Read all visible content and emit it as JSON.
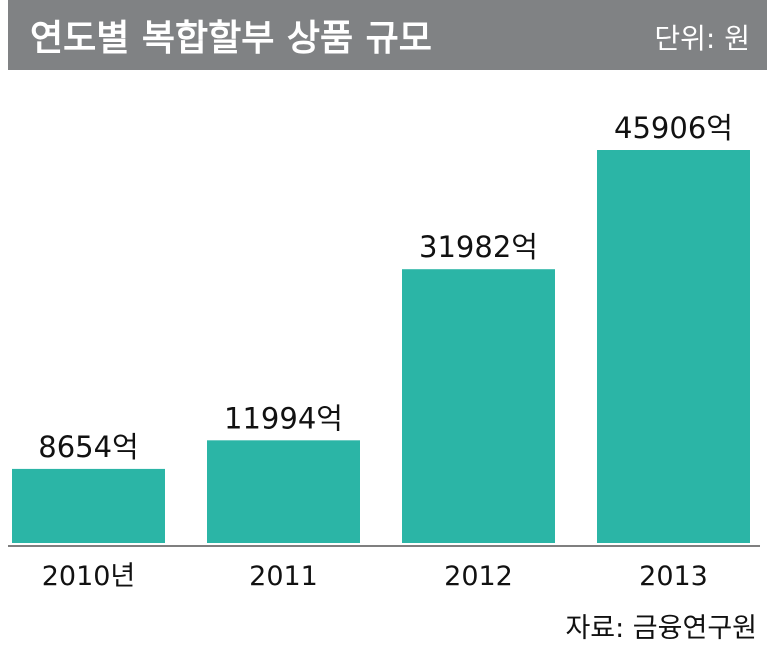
{
  "chart_data": {
    "type": "bar",
    "title": "연도별 복합할부 상품 규모",
    "unit": "단위: 원",
    "categories": [
      "2010년",
      "2011",
      "2012",
      "2013"
    ],
    "values": [
      8654,
      11994,
      31982,
      45906
    ],
    "value_labels": [
      "8654억",
      "11994억",
      "31982억",
      "45906억"
    ],
    "source": "자료: 금융연구원",
    "colors": {
      "bar": "#2bb5a6",
      "title_bar": "#808284"
    }
  }
}
